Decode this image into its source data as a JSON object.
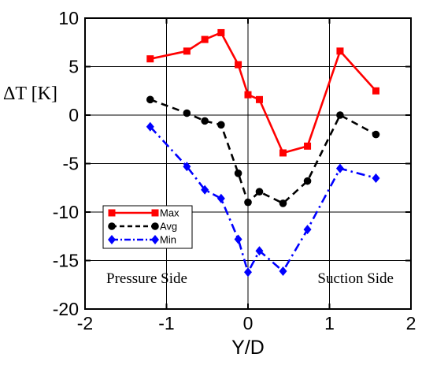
{
  "chart_data": {
    "type": "line",
    "xlabel": "Y/D",
    "ylabel": "ΔT [K]",
    "xlim": [
      -2,
      2
    ],
    "ylim": [
      -20,
      10
    ],
    "xticks": [
      -2,
      -1,
      0,
      1,
      2
    ],
    "yticks": [
      -20,
      -15,
      -10,
      -5,
      0,
      5,
      10
    ],
    "xtick_labels": [
      "-2",
      "-1",
      "0",
      "1",
      "2"
    ],
    "ytick_labels": [
      "-20",
      "-15",
      "-10",
      "-5",
      "0",
      "5",
      "10"
    ],
    "grid": true,
    "legend_position": "lower-left",
    "annotations": [
      {
        "text": "Pressure Side",
        "position": "lower-left"
      },
      {
        "text": "Suction Side",
        "position": "lower-right"
      }
    ],
    "series": [
      {
        "name": "Max",
        "color": "#ff0000",
        "line_style": "solid",
        "marker": "square",
        "x": [
          -1.2,
          -0.75,
          -0.53,
          -0.33,
          -0.12,
          0.0,
          0.14,
          0.43,
          0.73,
          1.13,
          1.57
        ],
        "y": [
          5.8,
          6.6,
          7.8,
          8.5,
          5.2,
          2.1,
          1.6,
          -3.9,
          -3.2,
          6.6,
          2.5
        ]
      },
      {
        "name": "Avg",
        "color": "#000000",
        "line_style": "dashed",
        "marker": "circle",
        "x": [
          -1.2,
          -0.75,
          -0.53,
          -0.33,
          -0.12,
          0.0,
          0.14,
          0.43,
          0.73,
          1.13,
          1.57
        ],
        "y": [
          1.6,
          0.2,
          -0.6,
          -1.0,
          -6.0,
          -9.0,
          -7.9,
          -9.1,
          -6.8,
          0.0,
          -2.0
        ]
      },
      {
        "name": "Min",
        "color": "#0000ff",
        "line_style": "dashdot",
        "marker": "diamond",
        "x": [
          -1.2,
          -0.75,
          -0.53,
          -0.33,
          -0.12,
          0.0,
          0.14,
          0.43,
          0.73,
          1.13,
          1.57
        ],
        "y": [
          -1.2,
          -5.3,
          -7.7,
          -8.6,
          -12.8,
          -16.2,
          -14.0,
          -16.1,
          -11.8,
          -5.5,
          -6.5
        ]
      }
    ]
  }
}
